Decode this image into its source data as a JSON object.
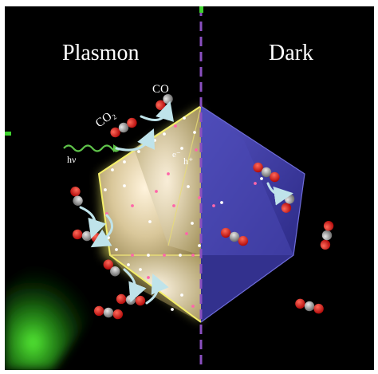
{
  "figure": {
    "left_label": "Plasmon",
    "right_label": "Dark",
    "light_label": "hν",
    "electron_label": "e⁻",
    "hole_label": "h⁺",
    "reactant_label": "CO₂",
    "product_label": "CO"
  },
  "colors": {
    "background": "#000000",
    "divider": "#8a4fc0",
    "plasmon_face": "#e9d7a6",
    "plasmon_edge": "#f4ef6a",
    "dark_face": "#3e3c9c",
    "dark_edge": "#2a2a7a",
    "green_glow": "#36e02a",
    "oxygen": "#e01818",
    "carbon": "#8c8c8c",
    "arrow": "#bfe3ea"
  },
  "icons": [
    "co2-molecule-icon",
    "co-molecule-icon",
    "curved-arrow-icon",
    "wavy-light-icon"
  ]
}
